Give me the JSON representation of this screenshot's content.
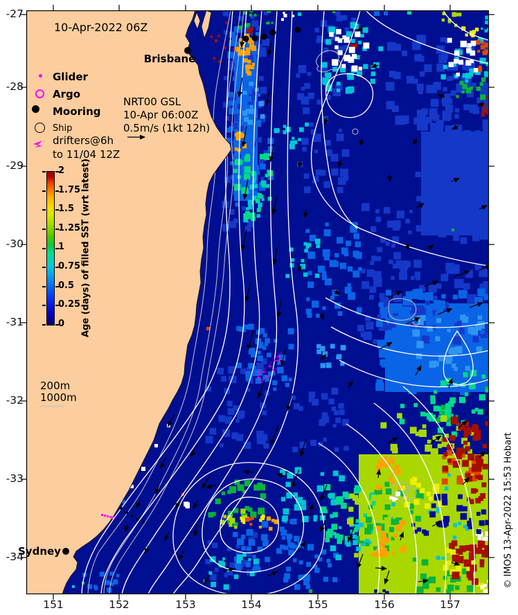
{
  "header": {
    "date_label": "10-Apr-2022 06Z"
  },
  "cities": {
    "brisbane": "Brisbane",
    "sydney": "Sydney"
  },
  "legend": {
    "glider": "Glider",
    "argo": "Argo",
    "mooring": "Mooring",
    "ship": "Ship",
    "drifters_line1": "drifters@6h",
    "drifters_line2": "to 11/04 12Z"
  },
  "model_note": {
    "line1": "NRT00 GSL",
    "line2": "10-Apr 06:00Z",
    "line3": "0.5m/s (1kt 12h)"
  },
  "colorbar": {
    "label": "Age (days) of filled SST (wrt latest)",
    "ticks": [
      "2",
      "1.75",
      "1.5",
      "1.25",
      "1",
      "0.75",
      "0.5",
      "0.25",
      "0"
    ],
    "min": 0,
    "max": 2
  },
  "isobath_labels": {
    "shallow": "200m",
    "deep": "1000m"
  },
  "axes": {
    "x_ticks": [
      "151",
      "152",
      "153",
      "154",
      "155",
      "156",
      "157"
    ],
    "y_ticks": [
      "-27",
      "-28",
      "-29",
      "-30",
      "-31",
      "-32",
      "-33",
      "-34"
    ]
  },
  "watermark": "© IMOS 13-Apr-2022 15:53 Hobart",
  "palette": {
    "land": "#fccd9e",
    "ocean": "#000f91",
    "med": "#1538c8",
    "bright": "#0a64e6",
    "lblue": "#2e96f0",
    "cyan": "#00c3d7",
    "mint": "#00d88e",
    "green": "#08b43c",
    "chart": "#a8d800",
    "yellow": "#f0ee00",
    "orange": "#ffa200",
    "red": "#e04800",
    "dred": "#a50f00",
    "white": "#ffffff",
    "navy": "#000f91",
    "contour": "#ffffff",
    "bathy": "#b4b4c8",
    "magenta": "#ff00ff",
    "coast": "#1a1a1a"
  }
}
